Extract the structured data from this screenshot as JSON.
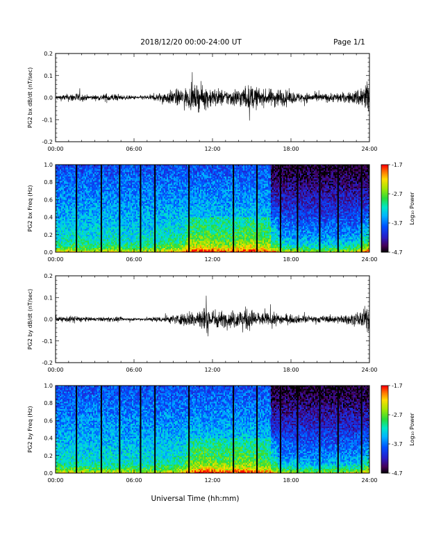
{
  "header": {
    "title": "2018/12/20  00:00-24:00 UT",
    "page": "Page 1/1"
  },
  "xlabel": "Universal Time (hh:mm)",
  "x_ticks": [
    "00:00",
    "06:00",
    "12:00",
    "18:00",
    "24:00"
  ],
  "chart_data": [
    {
      "type": "line",
      "ylabel": "PG2 bx dB/dt (nT/sec)",
      "xlim": [
        0,
        24
      ],
      "ylim": [
        -0.2,
        0.2
      ],
      "y_ticks": [
        "0.2",
        "0.1",
        "0.0",
        "-0.1",
        "-0.2"
      ],
      "envelope": {
        "x": [
          0,
          0.5,
          1,
          1.5,
          2,
          2.5,
          3,
          3.5,
          4,
          4.5,
          5,
          5.5,
          6,
          6.5,
          7,
          7.5,
          8,
          8.5,
          9,
          9.5,
          10,
          10.5,
          11,
          11.5,
          12,
          12.5,
          13,
          13.5,
          14,
          14.5,
          15,
          15.5,
          16,
          16.5,
          17,
          17.5,
          18,
          18.5,
          19,
          19.5,
          20,
          20.5,
          21,
          21.5,
          22,
          22.5,
          23,
          23.5,
          24
        ],
        "amplitude": [
          0.01,
          0.012,
          0.015,
          0.02,
          0.015,
          0.01,
          0.01,
          0.012,
          0.018,
          0.015,
          0.01,
          0.008,
          0.008,
          0.008,
          0.01,
          0.012,
          0.02,
          0.025,
          0.03,
          0.035,
          0.04,
          0.045,
          0.05,
          0.045,
          0.04,
          0.035,
          0.03,
          0.035,
          0.04,
          0.045,
          0.05,
          0.04,
          0.03,
          0.035,
          0.04,
          0.03,
          0.025,
          0.02,
          0.02,
          0.018,
          0.018,
          0.016,
          0.018,
          0.02,
          0.02,
          0.022,
          0.03,
          0.06,
          0.08
        ]
      }
    },
    {
      "type": "heatmap",
      "ylabel": "PG2 bx Freq (Hz)",
      "xlim": [
        0,
        24
      ],
      "ylim": [
        0,
        1
      ],
      "y_ticks": [
        "1.0",
        "0.8",
        "0.6",
        "0.4",
        "0.2",
        "0.0"
      ],
      "colorbar": {
        "label": "Log₁₀ Power",
        "ticks": [
          "-1.7",
          "-2.7",
          "-3.7",
          "-4.7"
        ],
        "range": [
          -4.7,
          -1.7
        ]
      },
      "gaps_hours": [
        1.6,
        3.5,
        4.9,
        6.5,
        7.6,
        10.2,
        13.6,
        15.4,
        17.2,
        18.5,
        20.2,
        21.6,
        23.4
      ]
    },
    {
      "type": "line",
      "ylabel": "PG2 by dB/dt (nT/sec)",
      "xlim": [
        0,
        24
      ],
      "ylim": [
        -0.2,
        0.2
      ],
      "y_ticks": [
        "0.2",
        "0.1",
        "0.0",
        "-0.1",
        "-0.2"
      ],
      "envelope": {
        "x": [
          0,
          0.5,
          1,
          1.5,
          2,
          2.5,
          3,
          3.5,
          4,
          4.5,
          5,
          5.5,
          6,
          6.5,
          7,
          7.5,
          8,
          8.5,
          9,
          9.5,
          10,
          10.5,
          11,
          11.5,
          12,
          12.5,
          13,
          13.5,
          14,
          14.5,
          15,
          15.5,
          16,
          16.5,
          17,
          17.5,
          18,
          18.5,
          19,
          19.5,
          20,
          20.5,
          21,
          21.5,
          22,
          22.5,
          23,
          23.5,
          24
        ],
        "amplitude": [
          0.008,
          0.01,
          0.012,
          0.015,
          0.012,
          0.008,
          0.008,
          0.008,
          0.01,
          0.01,
          0.008,
          0.006,
          0.006,
          0.006,
          0.008,
          0.01,
          0.012,
          0.015,
          0.018,
          0.022,
          0.028,
          0.035,
          0.045,
          0.05,
          0.045,
          0.035,
          0.03,
          0.035,
          0.04,
          0.045,
          0.04,
          0.03,
          0.025,
          0.025,
          0.025,
          0.02,
          0.018,
          0.016,
          0.015,
          0.014,
          0.014,
          0.014,
          0.015,
          0.016,
          0.018,
          0.02,
          0.025,
          0.04,
          0.06
        ]
      }
    },
    {
      "type": "heatmap",
      "ylabel": "PG2 by Freq (Hz)",
      "xlim": [
        0,
        24
      ],
      "ylim": [
        0,
        1
      ],
      "y_ticks": [
        "1.0",
        "0.8",
        "0.6",
        "0.4",
        "0.2",
        "0.0"
      ],
      "colorbar": {
        "label": "Log₁₀ Power",
        "ticks": [
          "-1.7",
          "-2.7",
          "-3.7",
          "-4.7"
        ],
        "range": [
          -4.7,
          -1.7
        ]
      },
      "gaps_hours": [
        1.6,
        3.5,
        4.9,
        6.5,
        7.6,
        10.2,
        13.6,
        15.4,
        17.2,
        18.5,
        20.2,
        21.6,
        23.4
      ]
    }
  ]
}
